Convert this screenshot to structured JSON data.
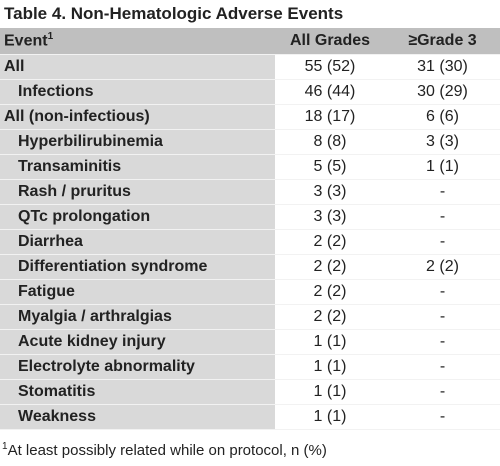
{
  "title": "Table 4. Non-Hematologic Adverse Events",
  "table": {
    "header": [
      "Event",
      "All Grades",
      "≥Grade 3"
    ],
    "header_note_mark": "1",
    "rows": [
      [
        "All",
        "55 (52)",
        "31 (30)"
      ],
      [
        "Infections",
        "46 (44)",
        "30 (29)"
      ],
      [
        "All (non-infectious)",
        "18 (17)",
        "6 (6)"
      ],
      [
        "Hyperbilirubinemia",
        "8 (8)",
        "3 (3)"
      ],
      [
        "Transaminitis",
        "5 (5)",
        "1 (1)"
      ],
      [
        "Rash / pruritus",
        "3 (3)",
        "-"
      ],
      [
        "QTc prolongation",
        "3 (3)",
        "-"
      ],
      [
        "Diarrhea",
        "2 (2)",
        "-"
      ],
      [
        "Differentiation syndrome",
        "2 (2)",
        "2 (2)"
      ],
      [
        "Fatigue",
        "2 (2)",
        "-"
      ],
      [
        "Myalgia / arthralgias",
        "2 (2)",
        "-"
      ],
      [
        "Acute kidney injury",
        "1 (1)",
        "-"
      ],
      [
        "Electrolyte abnormality",
        "1 (1)",
        "-"
      ],
      [
        "Stomatitis",
        "1 (1)",
        "-"
      ],
      [
        "Weakness",
        "1 (1)",
        "-"
      ]
    ]
  },
  "footnote": {
    "mark": "1",
    "text": "At least possibly related while on protocol, n (%)"
  }
}
